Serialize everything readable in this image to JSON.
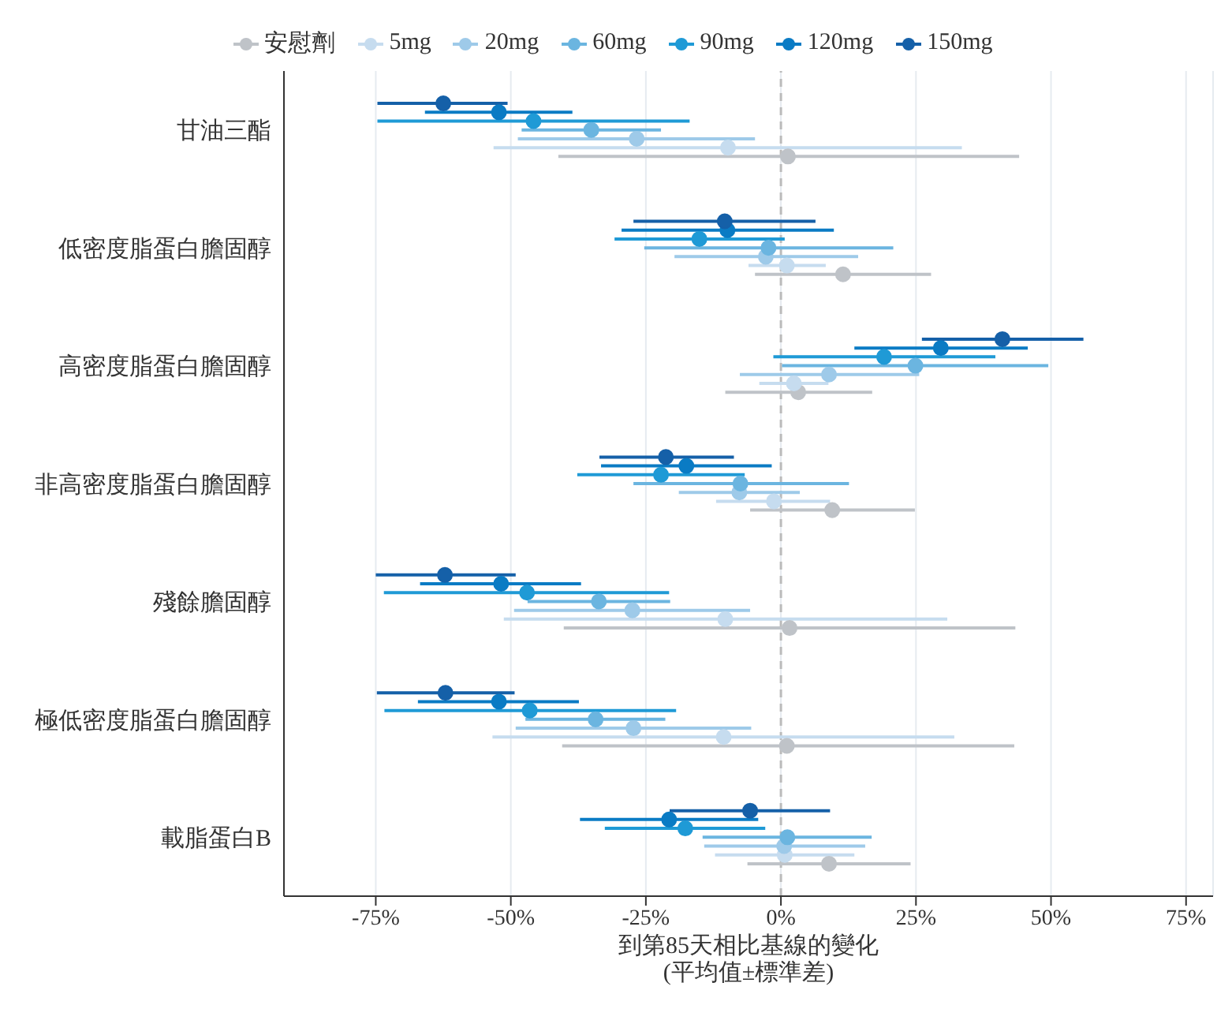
{
  "chart_data": {
    "type": "scatter",
    "orientation": "horizontal",
    "categories": [
      "甘油三酯",
      "低密度脂蛋白膽固醇",
      "高密度脂蛋白膽固醇",
      "非高密度脂蛋白膽固醇",
      "殘餘膽固醇",
      "極低密度脂蛋白膽固醇",
      "載脂蛋白B"
    ],
    "xlabel": "到第85天相比基線的變化\n(平均值±標準差)",
    "xlim": [
      -92,
      80
    ],
    "xticks": [
      {
        "value": -75,
        "label": "-75%"
      },
      {
        "value": -50,
        "label": "-50%"
      },
      {
        "value": -25,
        "label": "-25%"
      },
      {
        "value": 0,
        "label": "0%"
      },
      {
        "value": 25,
        "label": "25%"
      },
      {
        "value": 50,
        "label": "50%"
      },
      {
        "value": 75,
        "label": "75%"
      }
    ],
    "grid": "x",
    "legend": "top",
    "marker": "circle",
    "ref_lines": [
      {
        "axis": "x",
        "value": 0,
        "color": "#bbbbbb",
        "line_style": "dashed"
      }
    ],
    "series": [
      {
        "name": "安慰劑",
        "color": "#bfc3c8",
        "values": [
          1.3,
          11.5,
          3.2,
          9.5,
          1.6,
          1.1,
          8.9
        ],
        "errors": [
          [
            -41.2,
            44.1
          ],
          [
            -4.8,
            27.8
          ],
          [
            -10.3,
            16.9
          ],
          [
            -5.7,
            24.8
          ],
          [
            -40.2,
            43.4
          ],
          [
            -40.5,
            43.2
          ],
          [
            -6.2,
            24.0
          ]
        ]
      },
      {
        "name": "5mg",
        "color": "#c6dcef",
        "values": [
          -9.8,
          1.1,
          2.4,
          -1.3,
          -10.3,
          -10.6,
          0.7
        ],
        "errors": [
          [
            -53.2,
            33.5
          ],
          [
            -6.0,
            8.3
          ],
          [
            -4.0,
            8.8
          ],
          [
            -12.0,
            9.1
          ],
          [
            -51.3,
            30.8
          ],
          [
            -53.4,
            32.1
          ],
          [
            -12.2,
            13.6
          ]
        ]
      },
      {
        "name": "20mg",
        "color": "#9ecae9",
        "values": [
          -26.7,
          -2.8,
          8.9,
          -7.7,
          -27.5,
          -27.3,
          0.6
        ],
        "errors": [
          [
            -48.7,
            -4.8
          ],
          [
            -19.7,
            14.3
          ],
          [
            -7.6,
            25.6
          ],
          [
            -18.9,
            3.5
          ],
          [
            -49.4,
            -5.7
          ],
          [
            -49.1,
            -5.5
          ],
          [
            -14.2,
            15.6
          ]
        ]
      },
      {
        "name": "60mg",
        "color": "#6bb5e0",
        "values": [
          -35.1,
          -2.3,
          24.9,
          -7.5,
          -33.7,
          -34.3,
          1.2
        ],
        "errors": [
          [
            -48.0,
            -22.2
          ],
          [
            -25.3,
            20.8
          ],
          [
            0.2,
            49.5
          ],
          [
            -27.3,
            12.6
          ],
          [
            -46.9,
            -20.5
          ],
          [
            -47.3,
            -21.4
          ],
          [
            -14.5,
            16.8
          ]
        ]
      },
      {
        "name": "90mg",
        "color": "#1f9ad6",
        "values": [
          -45.8,
          -15.1,
          19.1,
          -22.2,
          -47.0,
          -46.5,
          -17.7
        ],
        "errors": [
          [
            -74.7,
            -16.9
          ],
          [
            -30.8,
            0.7
          ],
          [
            -1.4,
            39.7
          ],
          [
            -37.7,
            -6.7
          ],
          [
            -73.5,
            -20.7
          ],
          [
            -73.4,
            -19.4
          ],
          [
            -32.6,
            -2.9
          ]
        ]
      },
      {
        "name": "120mg",
        "color": "#0a7bc4",
        "values": [
          -52.2,
          -9.9,
          29.6,
          -17.5,
          -51.8,
          -52.2,
          -20.7
        ],
        "errors": [
          [
            -65.9,
            -38.6
          ],
          [
            -29.5,
            9.8
          ],
          [
            13.6,
            45.7
          ],
          [
            -33.3,
            -1.7
          ],
          [
            -66.8,
            -37.0
          ],
          [
            -67.2,
            -37.4
          ],
          [
            -37.2,
            -4.2
          ]
        ]
      },
      {
        "name": "150mg",
        "color": "#1560a8",
        "values": [
          -62.5,
          -10.4,
          41.0,
          -21.3,
          -62.2,
          -62.1,
          -5.7
        ],
        "errors": [
          [
            -74.7,
            -50.6
          ],
          [
            -27.3,
            6.4
          ],
          [
            26.1,
            56.0
          ],
          [
            -33.6,
            -8.7
          ],
          [
            -75.0,
            -49.1
          ],
          [
            -74.8,
            -49.3
          ],
          [
            -20.6,
            9.1
          ]
        ]
      }
    ]
  }
}
